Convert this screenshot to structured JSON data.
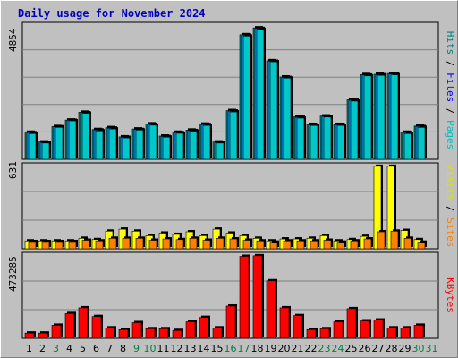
{
  "title": "Daily usage for November 2024",
  "colors": {
    "hits": "#00c0c0",
    "files": "#00a0ff",
    "pages": "#00c8c8",
    "visits": "#ffff00",
    "sites": "#ff8000",
    "kbytes": "#ff0000",
    "weekday_label": "#000000",
    "weekend_label": "#008040",
    "label_hits": "#008080",
    "label_files": "#0000ff",
    "label_pages": "#00c0c0",
    "label_visits": "#e0e000",
    "label_sites": "#ff8000",
    "label_kbytes": "#ff0000"
  },
  "panels": {
    "top": {
      "max_label": "4854",
      "right_label": [
        "Pages",
        "Files",
        "Hits"
      ]
    },
    "middle": {
      "max_label": "631",
      "right_label": [
        "Sites",
        "Visits"
      ]
    },
    "bottom": {
      "max_label": "473285",
      "right_label": [
        "KBytes"
      ]
    }
  },
  "chart_data": [
    {
      "type": "bar",
      "title": "Daily usage for November 2024",
      "categories": [
        "1",
        "2",
        "3",
        "4",
        "5",
        "6",
        "7",
        "8",
        "9",
        "10",
        "11",
        "12",
        "13",
        "14",
        "15",
        "16",
        "17",
        "18",
        "19",
        "20",
        "21",
        "22",
        "23",
        "24",
        "25",
        "26",
        "27",
        "28",
        "29",
        "30",
        "31"
      ],
      "weekend_days": [
        "3",
        "9",
        "10",
        "16",
        "17",
        "23",
        "24",
        "30",
        "31"
      ],
      "ylim": [
        0,
        4854
      ],
      "series": [
        {
          "name": "Hits",
          "values": [
            1000,
            640,
            1210,
            1450,
            1740,
            1100,
            1170,
            830,
            1120,
            1310,
            860,
            1000,
            1080,
            1300,
            640,
            1800,
            4600,
            4854,
            3640,
            3040,
            1570,
            1290,
            1600,
            1290,
            2200,
            3130,
            3140,
            3170,
            1000,
            1230,
            0
          ]
        },
        {
          "name": "Files",
          "values": [
            980,
            620,
            1200,
            1440,
            1720,
            1080,
            1150,
            810,
            1100,
            1290,
            840,
            980,
            1060,
            1280,
            620,
            1780,
            4580,
            4830,
            3620,
            3020,
            1550,
            1270,
            1580,
            1270,
            2180,
            3110,
            3120,
            3150,
            980,
            1210,
            0
          ]
        },
        {
          "name": "Pages",
          "values": [
            950,
            600,
            1180,
            1420,
            1700,
            1050,
            1120,
            790,
            1080,
            1260,
            820,
            960,
            1040,
            1250,
            600,
            1750,
            4550,
            4800,
            3600,
            3000,
            1520,
            1250,
            1560,
            1250,
            2150,
            3080,
            3100,
            3120,
            950,
            1180,
            0
          ]
        }
      ]
    },
    {
      "type": "bar",
      "categories": [
        "1",
        "2",
        "3",
        "4",
        "5",
        "6",
        "7",
        "8",
        "9",
        "10",
        "11",
        "12",
        "13",
        "14",
        "15",
        "16",
        "17",
        "18",
        "19",
        "20",
        "21",
        "22",
        "23",
        "24",
        "25",
        "26",
        "27",
        "28",
        "29",
        "30",
        "31"
      ],
      "ylim": [
        0,
        631
      ],
      "series": [
        {
          "name": "Visits",
          "values": [
            60,
            60,
            60,
            60,
            80,
            70,
            135,
            150,
            135,
            100,
            120,
            110,
            130,
            100,
            150,
            120,
            100,
            80,
            60,
            75,
            75,
            80,
            100,
            60,
            70,
            95,
            631,
            631,
            140,
            70,
            0
          ]
        },
        {
          "name": "Sites",
          "values": [
            55,
            55,
            55,
            55,
            65,
            60,
            80,
            80,
            80,
            65,
            75,
            70,
            80,
            65,
            80,
            75,
            65,
            60,
            50,
            60,
            60,
            60,
            65,
            50,
            60,
            75,
            130,
            135,
            80,
            50,
            0
          ]
        }
      ]
    },
    {
      "type": "bar",
      "categories": [
        "1",
        "2",
        "3",
        "4",
        "5",
        "6",
        "7",
        "8",
        "9",
        "10",
        "11",
        "12",
        "13",
        "14",
        "15",
        "16",
        "17",
        "18",
        "19",
        "20",
        "21",
        "22",
        "23",
        "24",
        "25",
        "26",
        "27",
        "28",
        "29",
        "30",
        "31"
      ],
      "ylim": [
        0,
        473285
      ],
      "series": [
        {
          "name": "KBytes",
          "values": [
            30000,
            30000,
            75000,
            142000,
            175000,
            125000,
            60000,
            50000,
            90000,
            55000,
            55000,
            45000,
            95000,
            120000,
            60000,
            185000,
            470000,
            473285,
            330000,
            175000,
            130000,
            50000,
            55000,
            95000,
            170000,
            100000,
            105000,
            60000,
            60000,
            75000,
            0
          ]
        }
      ]
    }
  ]
}
